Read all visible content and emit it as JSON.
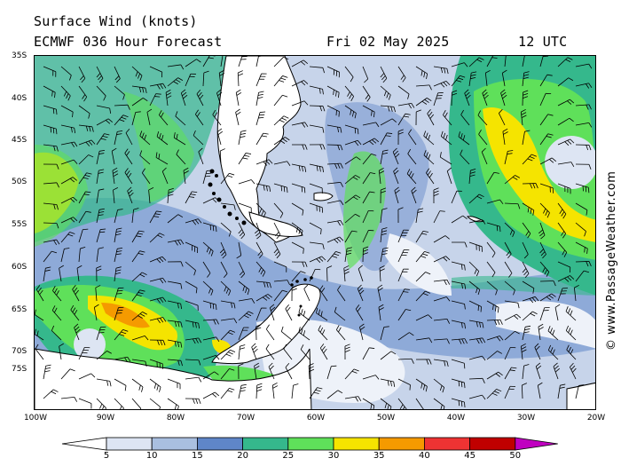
{
  "header": {
    "title": "Surface Wind (knots)",
    "model": "ECMWF 036 Hour Forecast",
    "date": "Fri 02 May 2025",
    "time": "12 UTC"
  },
  "copyright": "© www.PassageWeather.com",
  "map": {
    "lat_labels": [
      "35S",
      "40S",
      "45S",
      "50S",
      "55S",
      "60S",
      "65S",
      "70S",
      "75S"
    ],
    "lon_labels": [
      "100W",
      "90W",
      "80W",
      "70W",
      "60W",
      "50W",
      "40W",
      "30W",
      "20W"
    ]
  },
  "colors": {
    "land": "#ffffff",
    "ocean_base": "#c7d4ea",
    "coast": "#000000",
    "barb": "#000000"
  },
  "legend": {
    "labels": [
      "5",
      "10",
      "15",
      "20",
      "25",
      "30",
      "35",
      "40",
      "45",
      "50"
    ],
    "colors": [
      "#ffffff",
      "#dde5f3",
      "#a9bfe0",
      "#5f86c8",
      "#35b88c",
      "#5fe05a",
      "#f5e400",
      "#f59a00",
      "#ee3333",
      "#c00000",
      "#c000c0"
    ]
  }
}
